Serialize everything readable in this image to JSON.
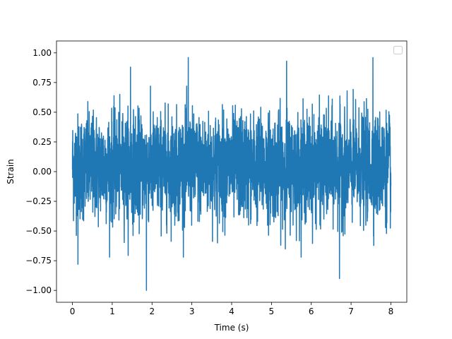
{
  "chart_data": {
    "type": "line",
    "title": "",
    "xlabel": "Time (s)",
    "ylabel": "Strain",
    "xlim": [
      -0.4,
      8.4
    ],
    "ylim": [
      -1.1,
      1.1
    ],
    "x_ticks": [
      0,
      1,
      2,
      3,
      4,
      5,
      6,
      7,
      8
    ],
    "x_tick_labels": [
      "0",
      "1",
      "2",
      "3",
      "4",
      "5",
      "6",
      "7",
      "8"
    ],
    "y_ticks": [
      -1.0,
      -0.75,
      -0.5,
      -0.25,
      0.0,
      0.25,
      0.5,
      0.75,
      1.0
    ],
    "y_tick_labels": [
      "−1.00",
      "−0.75",
      "−0.50",
      "−0.25",
      "0.00",
      "0.25",
      "0.50",
      "0.75",
      "1.00"
    ],
    "legend": {
      "placement": "upper-right",
      "entries": []
    },
    "grid": false,
    "series_color": "#1f77b4",
    "series": [
      {
        "x_start": 0,
        "x_end": 8,
        "summary": "dense random noise, mostly between -0.5 and 0.6",
        "notable_points": [
          {
            "x": 0.0,
            "y": 0.02
          },
          {
            "x": 0.14,
            "y": -0.78
          },
          {
            "x": 1.46,
            "y": 0.88
          },
          {
            "x": 1.86,
            "y": -1.0
          },
          {
            "x": 2.91,
            "y": 0.96
          },
          {
            "x": 5.38,
            "y": 0.93
          },
          {
            "x": 6.71,
            "y": -0.9
          },
          {
            "x": 7.55,
            "y": 0.96
          },
          {
            "x": 8.0,
            "y": -0.12
          }
        ]
      }
    ]
  }
}
